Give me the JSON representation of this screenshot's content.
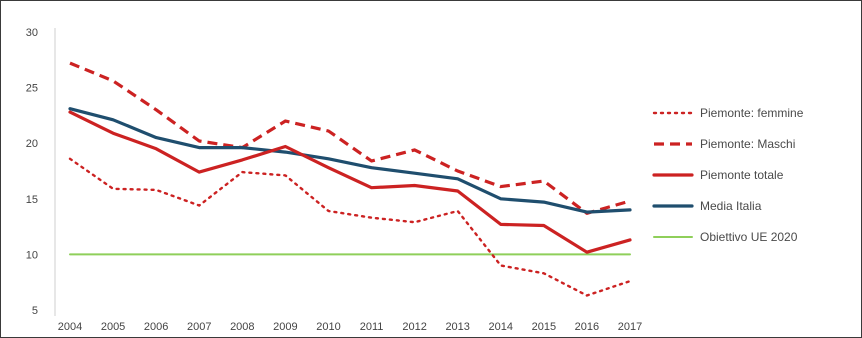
{
  "chart_data": {
    "type": "line",
    "title": "",
    "xlabel": "",
    "ylabel": "",
    "x": [
      "2004",
      "2005",
      "2006",
      "2007",
      "2008",
      "2009",
      "2010",
      "2011",
      "2012",
      "2013",
      "2014",
      "2015",
      "2016",
      "2017"
    ],
    "y_ticks": [
      5,
      10,
      15,
      20,
      25,
      30
    ],
    "ylim": [
      5,
      30
    ],
    "grid": false,
    "legend_position": "right",
    "series": [
      {
        "name": "Piemonte: femmine",
        "style": "dotted",
        "color": "#cc2222",
        "values": [
          18.6,
          15.9,
          15.8,
          14.4,
          17.4,
          17.1,
          13.9,
          13.3,
          12.9,
          13.9,
          9.0,
          8.3,
          6.3,
          7.6
        ]
      },
      {
        "name": "Piemonte: Maschi",
        "style": "dashed",
        "color": "#cc2222",
        "values": [
          27.2,
          25.6,
          23.0,
          20.2,
          19.6,
          22.0,
          21.1,
          18.4,
          19.4,
          17.5,
          16.1,
          16.6,
          13.7,
          14.8
        ]
      },
      {
        "name": "Piemonte totale",
        "style": "solid",
        "color": "#cc2222",
        "values": [
          22.8,
          20.9,
          19.5,
          17.4,
          18.5,
          19.7,
          17.8,
          16.0,
          16.2,
          15.7,
          12.7,
          12.6,
          10.2,
          11.3
        ]
      },
      {
        "name": "Media Italia",
        "style": "solid",
        "color": "#1f4e6e",
        "values": [
          23.1,
          22.1,
          20.5,
          19.6,
          19.6,
          19.2,
          18.6,
          17.8,
          17.3,
          16.8,
          15.0,
          14.7,
          13.8,
          14.0
        ]
      },
      {
        "name": "Obiettivo UE 2020",
        "style": "solid",
        "color": "#8fcf5a",
        "values": [
          10,
          10,
          10,
          10,
          10,
          10,
          10,
          10,
          10,
          10,
          10,
          10,
          10,
          10
        ]
      }
    ]
  }
}
